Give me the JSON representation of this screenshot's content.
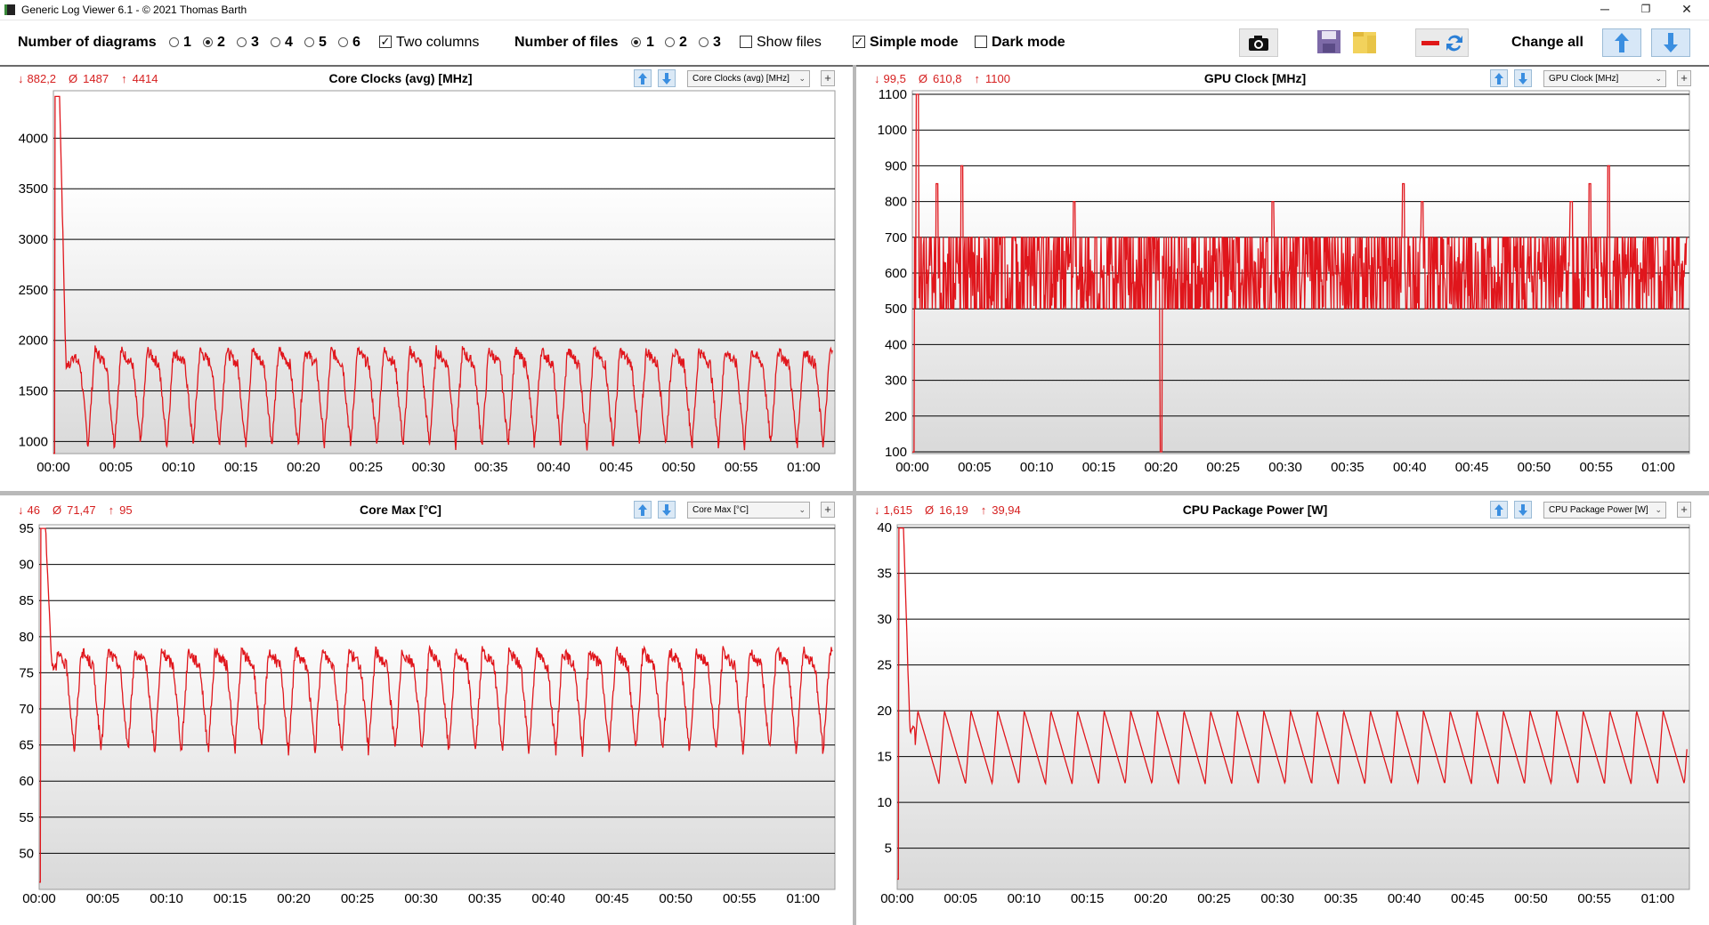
{
  "window": {
    "title": "Generic Log Viewer 6.1 - © 2021 Thomas Barth",
    "minimize": "─",
    "maximize": "❐",
    "close": "✕"
  },
  "toolbar": {
    "diagrams_label": "Number of diagrams",
    "diagram_options": [
      "1",
      "2",
      "3",
      "4",
      "5",
      "6"
    ],
    "diagram_selected": "2",
    "two_columns_label": "Two columns",
    "two_columns_checked": true,
    "files_label": "Number of files",
    "file_options": [
      "1",
      "2",
      "3"
    ],
    "file_selected": "1",
    "show_files_label": "Show files",
    "show_files_checked": false,
    "simple_mode_label": "Simple mode",
    "simple_mode_checked": true,
    "dark_mode_label": "Dark mode",
    "dark_mode_checked": false,
    "change_all_label": "Change all",
    "icons": [
      "camera-icon",
      "save-icon",
      "folder-icon",
      "remove-sync-icon",
      "arrow-up-icon",
      "arrow-down-icon"
    ]
  },
  "colors": {
    "series": "#e0161c",
    "stats": "#d62020",
    "grid": "#000000",
    "plot_bg_bottom": "#d9d9d9"
  },
  "panels": [
    {
      "stats": {
        "min": "882,2",
        "avg": "1487",
        "max": "4414"
      },
      "title": "Core Clocks (avg) [MHz]",
      "selector": "Core Clocks (avg) [MHz]"
    },
    {
      "stats": {
        "min": "99,5",
        "avg": "610,8",
        "max": "1100"
      },
      "title": "GPU Clock [MHz]",
      "selector": "GPU Clock [MHz]"
    },
    {
      "stats": {
        "min": "46",
        "avg": "71,47",
        "max": "95"
      },
      "title": "Core Max [°C]",
      "selector": "Core Max [°C]"
    },
    {
      "stats": {
        "min": "1,615",
        "avg": "16,19",
        "max": "39,94"
      },
      "title": "CPU Package Power [W]",
      "selector": "CPU Package Power [W]"
    }
  ],
  "chart_data": [
    {
      "type": "line",
      "title": "Core Clocks (avg) [MHz]",
      "x_ticks": [
        "00:00",
        "00:05",
        "00:10",
        "00:15",
        "00:20",
        "00:25",
        "00:30",
        "00:35",
        "00:40",
        "00:45",
        "00:50",
        "00:55",
        "01:00"
      ],
      "x_range_minutes": [
        0,
        62.5
      ],
      "y_ticks": [
        1000,
        1500,
        2000,
        2500,
        3000,
        3500,
        4000
      ],
      "ylim": [
        880,
        4470
      ],
      "grid": true,
      "series": [
        {
          "shape": "oscillating",
          "start_peak": 4414,
          "settle_value": 1750,
          "period_minutes": 2.1,
          "high": 1900,
          "low": 950,
          "mean": 1487,
          "min": 882.2,
          "max": 4414
        }
      ]
    },
    {
      "type": "line",
      "title": "GPU Clock [MHz]",
      "x_ticks": [
        "00:00",
        "00:05",
        "00:10",
        "00:15",
        "00:20",
        "00:25",
        "00:30",
        "00:35",
        "00:40",
        "00:45",
        "00:50",
        "00:55",
        "01:00"
      ],
      "x_range_minutes": [
        0,
        62.5
      ],
      "y_ticks": [
        100,
        200,
        300,
        400,
        500,
        600,
        700,
        800,
        900,
        1000,
        1100
      ],
      "ylim": [
        95,
        1110
      ],
      "grid": true,
      "series": [
        {
          "shape": "noisy-band",
          "band_low": 500,
          "band_high": 700,
          "spikes": [
            [
              0.4,
              1100
            ],
            [
              2.0,
              850
            ],
            [
              4.0,
              900
            ],
            [
              13.0,
              800
            ],
            [
              20.0,
              100
            ],
            [
              29.0,
              800
            ],
            [
              39.5,
              850
            ],
            [
              41.0,
              800
            ],
            [
              53.0,
              800
            ],
            [
              54.5,
              850
            ],
            [
              56.0,
              900
            ]
          ],
          "mean": 610.8,
          "min": 99.5,
          "max": 1100
        }
      ]
    },
    {
      "type": "line",
      "title": "Core Max [°C]",
      "x_ticks": [
        "00:00",
        "00:05",
        "00:10",
        "00:15",
        "00:20",
        "00:25",
        "00:30",
        "00:35",
        "00:40",
        "00:45",
        "00:50",
        "00:55",
        "01:00"
      ],
      "x_range_minutes": [
        0,
        62.5
      ],
      "y_ticks": [
        50,
        55,
        60,
        65,
        70,
        75,
        80,
        85,
        90,
        95
      ],
      "ylim": [
        45,
        95.5
      ],
      "grid": true,
      "series": [
        {
          "shape": "oscillating",
          "start_peak": 95,
          "settle_value": 76,
          "period_minutes": 2.1,
          "high": 78,
          "low": 64,
          "mean": 71.47,
          "min": 46,
          "max": 95
        }
      ]
    },
    {
      "type": "line",
      "title": "CPU Package Power [W]",
      "x_ticks": [
        "00:00",
        "00:05",
        "00:10",
        "00:15",
        "00:20",
        "00:25",
        "00:30",
        "00:35",
        "00:40",
        "00:45",
        "00:50",
        "00:55",
        "01:00"
      ],
      "x_range_minutes": [
        0,
        62.5
      ],
      "y_ticks": [
        5,
        10,
        15,
        20,
        25,
        30,
        35,
        40
      ],
      "ylim": [
        0.5,
        40.3
      ],
      "grid": true,
      "series": [
        {
          "shape": "triangle",
          "start_peak": 39.94,
          "settle_value": 18,
          "period_minutes": 2.1,
          "high": 20,
          "low": 12,
          "mean": 16.19,
          "min": 1.615,
          "max": 39.94
        }
      ]
    }
  ]
}
